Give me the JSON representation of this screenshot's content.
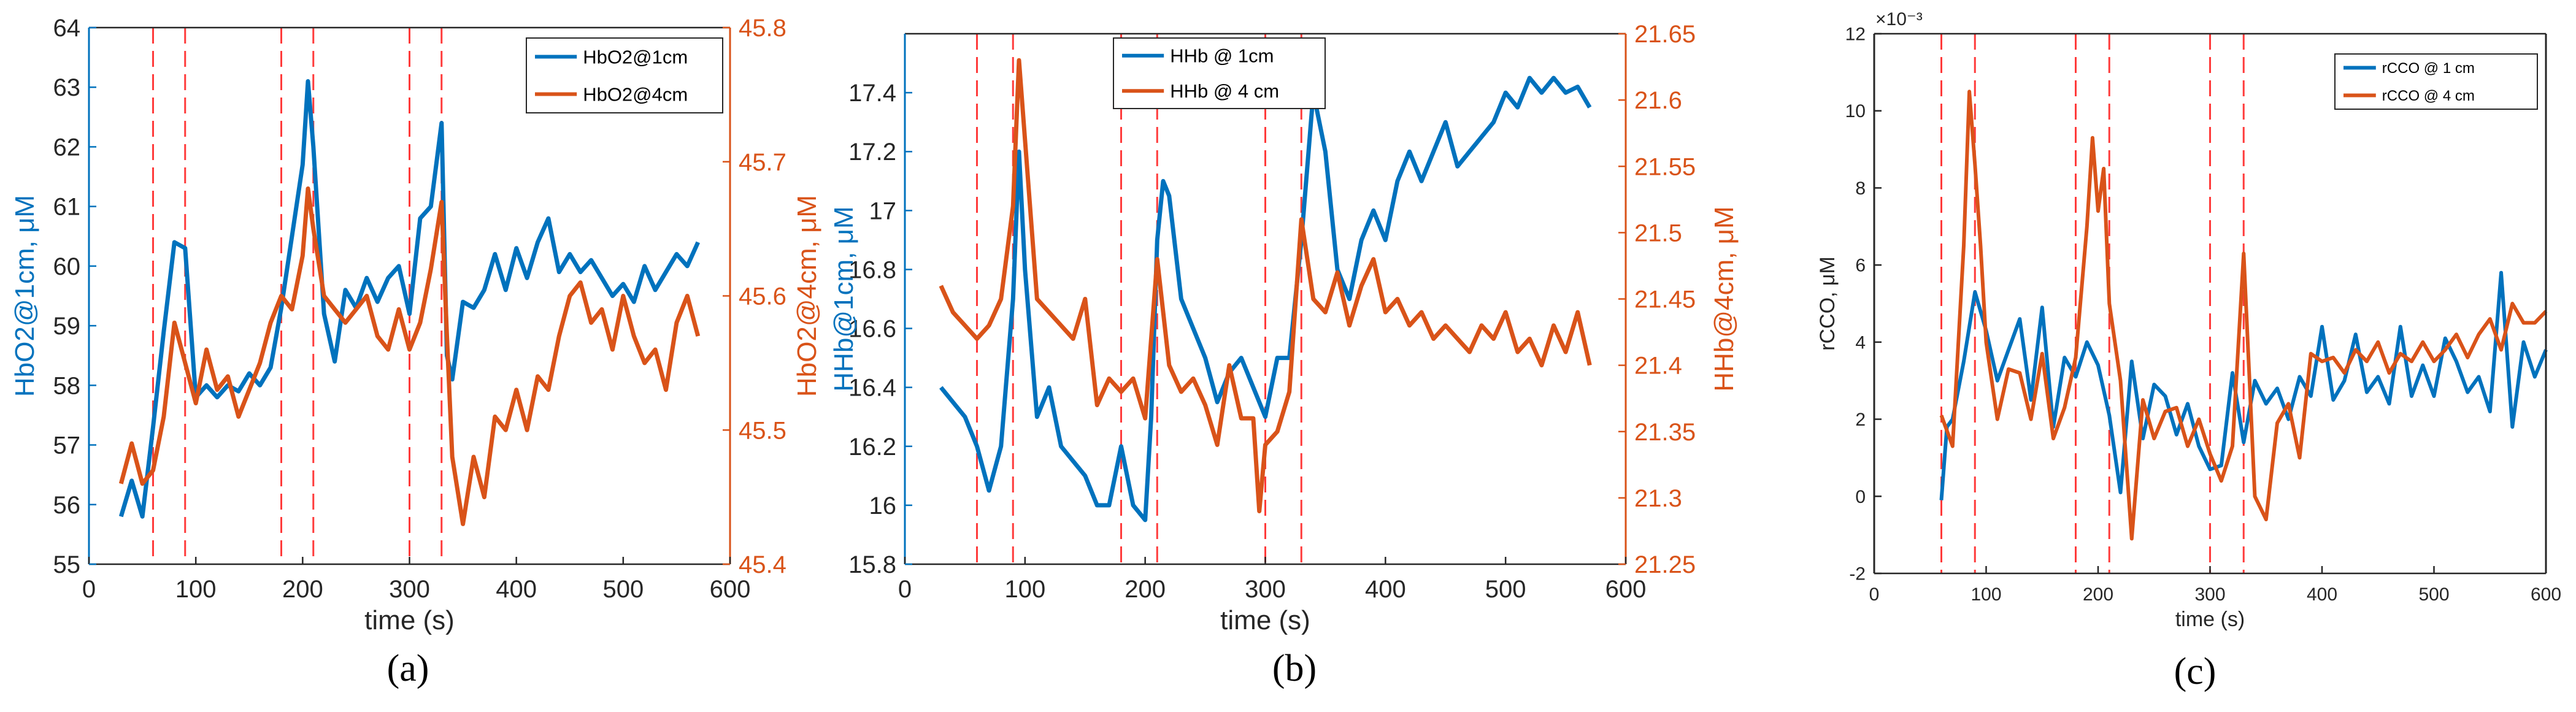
{
  "colors": {
    "blue": "#0072BD",
    "orange": "#D95319",
    "guide": "#FF3B3B",
    "axis": "#262626"
  },
  "chart_data": [
    {
      "type": "line",
      "id": "a",
      "caption": "(a)",
      "xlabel": "time (s)",
      "xlim": [
        0,
        600
      ],
      "xticks": [
        "0",
        "100",
        "200",
        "300",
        "400",
        "500",
        "600"
      ],
      "xtick_values": [
        0,
        100,
        200,
        300,
        400,
        500,
        600
      ],
      "y_left": {
        "label": "HbO2@1cm, μM",
        "lim": [
          55,
          64
        ],
        "ticks": [
          "55",
          "56",
          "57",
          "58",
          "59",
          "60",
          "61",
          "62",
          "63",
          "64"
        ],
        "tick_values": [
          55,
          56,
          57,
          58,
          59,
          60,
          61,
          62,
          63,
          64
        ]
      },
      "y_right": {
        "label": "HbO2@4cm, μM",
        "lim": [
          45.4,
          45.8
        ],
        "ticks": [
          "45.4",
          "45.5",
          "45.6",
          "45.7",
          "45.8"
        ],
        "tick_values": [
          45.4,
          45.5,
          45.6,
          45.7,
          45.8
        ]
      },
      "vlines": [
        60,
        90,
        180,
        210,
        300,
        330
      ],
      "legend": [
        "HbO2@1cm",
        "HbO2@4cm"
      ],
      "series": [
        {
          "name": "HbO2@1cm",
          "axis": "left",
          "color": "blue",
          "x": [
            30,
            40,
            50,
            60,
            70,
            80,
            90,
            100,
            110,
            120,
            130,
            140,
            150,
            160,
            170,
            180,
            190,
            200,
            205,
            210,
            220,
            230,
            240,
            250,
            260,
            270,
            280,
            290,
            300,
            310,
            320,
            330,
            335,
            340,
            350,
            360,
            370,
            380,
            390,
            400,
            410,
            420,
            430,
            440,
            450,
            460,
            470,
            480,
            490,
            500,
            510,
            520,
            530,
            540,
            550,
            560,
            570
          ],
          "values": [
            55.8,
            56.4,
            55.8,
            57.3,
            58.9,
            60.4,
            60.3,
            57.8,
            58.0,
            57.8,
            58.0,
            57.9,
            58.2,
            58.0,
            58.3,
            59.3,
            60.5,
            61.7,
            63.1,
            62.0,
            59.2,
            58.4,
            59.6,
            59.3,
            59.8,
            59.4,
            59.8,
            60.0,
            59.2,
            60.8,
            61.0,
            62.4,
            58.5,
            58.1,
            59.4,
            59.3,
            59.6,
            60.2,
            59.6,
            60.3,
            59.8,
            60.4,
            60.8,
            59.9,
            60.2,
            59.9,
            60.1,
            59.8,
            59.5,
            59.7,
            59.4,
            60.0,
            59.6,
            59.9,
            60.2,
            60.0,
            60.4
          ]
        },
        {
          "name": "HbO2@4cm",
          "axis": "right",
          "color": "orange",
          "x": [
            30,
            40,
            50,
            60,
            70,
            80,
            90,
            100,
            110,
            120,
            130,
            140,
            150,
            160,
            170,
            180,
            190,
            200,
            205,
            210,
            220,
            230,
            240,
            250,
            260,
            270,
            280,
            290,
            300,
            310,
            320,
            330,
            335,
            340,
            350,
            360,
            370,
            380,
            390,
            400,
            410,
            420,
            430,
            440,
            450,
            460,
            470,
            480,
            490,
            500,
            510,
            520,
            530,
            540,
            550,
            560,
            570
          ],
          "values": [
            45.46,
            45.49,
            45.46,
            45.47,
            45.51,
            45.58,
            45.55,
            45.52,
            45.56,
            45.53,
            45.54,
            45.51,
            45.53,
            45.55,
            45.58,
            45.6,
            45.59,
            45.63,
            45.68,
            45.65,
            45.6,
            45.59,
            45.58,
            45.59,
            45.6,
            45.57,
            45.56,
            45.59,
            45.56,
            45.58,
            45.62,
            45.67,
            45.57,
            45.48,
            45.43,
            45.48,
            45.45,
            45.51,
            45.5,
            45.53,
            45.5,
            45.54,
            45.53,
            45.57,
            45.6,
            45.61,
            45.58,
            45.59,
            45.56,
            45.6,
            45.57,
            45.55,
            45.56,
            45.53,
            45.58,
            45.6,
            45.57
          ]
        }
      ]
    },
    {
      "type": "line",
      "id": "b",
      "caption": "(b)",
      "xlabel": "time (s)",
      "xlim": [
        0,
        600
      ],
      "xticks": [
        "0",
        "100",
        "200",
        "300",
        "400",
        "500",
        "600"
      ],
      "xtick_values": [
        0,
        100,
        200,
        300,
        400,
        500,
        600
      ],
      "y_left": {
        "label": "HHb@1cm, μM",
        "lim": [
          15.8,
          17.6
        ],
        "ticks": [
          "15.8",
          "16",
          "16.2",
          "16.4",
          "16.6",
          "16.8",
          "17",
          "17.2",
          "17.4"
        ],
        "tick_values": [
          15.8,
          16,
          16.2,
          16.4,
          16.6,
          16.8,
          17,
          17.2,
          17.4
        ]
      },
      "y_right": {
        "label": "HHb@4cm, μM",
        "lim": [
          21.25,
          21.65
        ],
        "ticks": [
          "21.25",
          "21.3",
          "21.35",
          "21.4",
          "21.45",
          "21.5",
          "21.55",
          "21.6",
          "21.65"
        ],
        "tick_values": [
          21.25,
          21.3,
          21.35,
          21.4,
          21.45,
          21.5,
          21.55,
          21.6,
          21.65
        ]
      },
      "vlines": [
        60,
        90,
        180,
        210,
        300,
        330
      ],
      "legend": [
        "HHb @ 1cm",
        "HHb @ 4 cm"
      ],
      "series": [
        {
          "name": "HHb @ 1cm",
          "axis": "left",
          "color": "blue",
          "x": [
            30,
            40,
            50,
            60,
            70,
            80,
            90,
            95,
            100,
            110,
            120,
            130,
            140,
            150,
            160,
            170,
            180,
            190,
            200,
            205,
            210,
            215,
            220,
            230,
            240,
            250,
            260,
            270,
            280,
            290,
            300,
            310,
            320,
            330,
            340,
            350,
            360,
            370,
            380,
            390,
            400,
            410,
            420,
            430,
            440,
            450,
            460,
            470,
            480,
            490,
            500,
            510,
            520,
            530,
            540,
            550,
            560,
            570
          ],
          "values": [
            16.4,
            16.35,
            16.3,
            16.2,
            16.05,
            16.2,
            16.7,
            17.2,
            16.8,
            16.3,
            16.4,
            16.2,
            16.15,
            16.1,
            16.0,
            16.0,
            16.2,
            16.0,
            15.95,
            16.3,
            16.9,
            17.1,
            17.05,
            16.7,
            16.6,
            16.5,
            16.35,
            16.45,
            16.5,
            16.4,
            16.3,
            16.5,
            16.5,
            16.9,
            17.4,
            17.2,
            16.8,
            16.7,
            16.9,
            17.0,
            16.9,
            17.1,
            17.2,
            17.1,
            17.2,
            17.3,
            17.15,
            17.2,
            17.25,
            17.3,
            17.4,
            17.35,
            17.45,
            17.4,
            17.45,
            17.4,
            17.42,
            17.35
          ]
        },
        {
          "name": "HHb @ 4 cm",
          "axis": "right",
          "color": "orange",
          "x": [
            30,
            40,
            50,
            60,
            70,
            80,
            90,
            95,
            100,
            110,
            120,
            130,
            140,
            150,
            160,
            170,
            180,
            190,
            200,
            210,
            220,
            230,
            240,
            250,
            260,
            270,
            280,
            290,
            295,
            300,
            310,
            320,
            330,
            340,
            350,
            360,
            370,
            380,
            390,
            400,
            410,
            420,
            430,
            440,
            450,
            460,
            470,
            480,
            490,
            500,
            510,
            520,
            530,
            540,
            550,
            560,
            570
          ],
          "values": [
            21.46,
            21.44,
            21.43,
            21.42,
            21.43,
            21.45,
            21.52,
            21.63,
            21.57,
            21.45,
            21.44,
            21.43,
            21.42,
            21.45,
            21.37,
            21.39,
            21.38,
            21.39,
            21.36,
            21.48,
            21.4,
            21.38,
            21.39,
            21.37,
            21.34,
            21.4,
            21.36,
            21.36,
            21.29,
            21.34,
            21.35,
            21.38,
            21.51,
            21.45,
            21.44,
            21.47,
            21.43,
            21.46,
            21.48,
            21.44,
            21.45,
            21.43,
            21.44,
            21.42,
            21.43,
            21.42,
            21.41,
            21.43,
            21.42,
            21.44,
            21.41,
            21.42,
            21.4,
            21.43,
            21.41,
            21.44,
            21.4
          ]
        }
      ]
    },
    {
      "type": "line",
      "id": "c",
      "caption": "(c)",
      "xlabel": "time (s)",
      "xlim": [
        0,
        600
      ],
      "xticks": [
        "0",
        "100",
        "200",
        "300",
        "400",
        "500",
        "600"
      ],
      "xtick_values": [
        0,
        100,
        200,
        300,
        400,
        500,
        600
      ],
      "exponent": "×10⁻³",
      "y_left": {
        "label": "rCCO, μM",
        "lim": [
          -2,
          12
        ],
        "ticks": [
          "-2",
          "0",
          "2",
          "4",
          "6",
          "8",
          "10",
          "12"
        ],
        "tick_values": [
          -2,
          0,
          2,
          4,
          6,
          8,
          10,
          12
        ]
      },
      "vlines": [
        60,
        90,
        180,
        210,
        300,
        330
      ],
      "legend": [
        "rCCO @ 1 cm",
        "rCCO @ 4 cm"
      ],
      "series": [
        {
          "name": "rCCO @ 1 cm",
          "axis": "left",
          "color": "blue",
          "x": [
            60,
            65,
            70,
            80,
            90,
            100,
            110,
            120,
            130,
            140,
            150,
            160,
            170,
            180,
            190,
            200,
            210,
            220,
            230,
            240,
            250,
            260,
            270,
            280,
            290,
            300,
            310,
            320,
            330,
            340,
            350,
            360,
            370,
            380,
            390,
            400,
            410,
            420,
            430,
            440,
            450,
            460,
            470,
            480,
            490,
            500,
            510,
            520,
            530,
            540,
            550,
            560,
            570,
            580,
            590,
            600
          ],
          "values": [
            -0.1,
            1.8,
            2.0,
            3.5,
            5.3,
            4.3,
            3.0,
            3.8,
            4.6,
            2.5,
            4.9,
            1.8,
            3.6,
            3.1,
            4.0,
            3.4,
            2.1,
            0.1,
            3.5,
            1.5,
            2.9,
            2.6,
            1.6,
            2.4,
            1.3,
            0.7,
            0.8,
            3.2,
            1.4,
            3.0,
            2.4,
            2.8,
            2.0,
            3.1,
            2.6,
            4.4,
            2.5,
            3.0,
            4.2,
            2.7,
            3.1,
            2.4,
            4.4,
            2.6,
            3.4,
            2.6,
            4.1,
            3.5,
            2.7,
            3.1,
            2.2,
            5.8,
            1.8,
            4.0,
            3.1,
            3.8
          ]
        },
        {
          "name": "rCCO @ 4 cm",
          "axis": "left",
          "color": "orange",
          "x": [
            60,
            70,
            80,
            85,
            90,
            95,
            100,
            110,
            120,
            130,
            140,
            150,
            160,
            170,
            180,
            190,
            195,
            200,
            205,
            210,
            220,
            230,
            240,
            250,
            260,
            270,
            280,
            290,
            300,
            310,
            320,
            330,
            340,
            350,
            360,
            370,
            380,
            390,
            400,
            410,
            420,
            430,
            440,
            450,
            460,
            470,
            480,
            490,
            500,
            510,
            520,
            530,
            540,
            550,
            560,
            570,
            580,
            590,
            600
          ],
          "values": [
            2.1,
            1.3,
            6.5,
            10.5,
            8.6,
            6.5,
            4.0,
            2.0,
            3.3,
            3.2,
            2.0,
            3.7,
            1.5,
            2.3,
            3.6,
            7.0,
            9.3,
            7.4,
            8.5,
            5.0,
            3.0,
            -1.1,
            2.5,
            1.5,
            2.2,
            2.3,
            1.3,
            2.0,
            1.1,
            0.4,
            1.3,
            6.3,
            0.0,
            -0.6,
            1.9,
            2.4,
            1.0,
            3.7,
            3.5,
            3.6,
            3.2,
            3.8,
            3.5,
            4.0,
            3.2,
            3.7,
            3.5,
            4.0,
            3.5,
            3.8,
            4.2,
            3.6,
            4.2,
            4.6,
            3.8,
            5.0,
            4.5,
            4.5,
            4.8
          ]
        }
      ]
    }
  ]
}
